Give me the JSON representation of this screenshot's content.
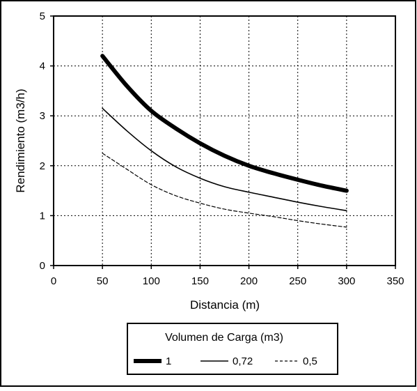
{
  "chart_data": {
    "type": "line",
    "title": "",
    "xlabel": "Distancia (m)",
    "ylabel": "Rendimiento (m3/h)",
    "xlim": [
      0,
      350
    ],
    "ylim": [
      0,
      5
    ],
    "xticks": [
      0,
      50,
      100,
      150,
      200,
      250,
      300,
      350
    ],
    "yticks": [
      0,
      1,
      2,
      3,
      4,
      5
    ],
    "grid": true,
    "legend": {
      "title": "Volumen de Carga (m3)",
      "placement": "bottom"
    },
    "series": [
      {
        "name": "1",
        "style": "thick",
        "color": "#000000",
        "x": [
          50,
          75,
          100,
          125,
          150,
          175,
          200,
          225,
          250,
          275,
          300
        ],
        "y": [
          4.2,
          3.6,
          3.1,
          2.75,
          2.45,
          2.2,
          2.0,
          1.85,
          1.72,
          1.6,
          1.5
        ]
      },
      {
        "name": "0,72",
        "style": "solid",
        "color": "#000000",
        "x": [
          50,
          75,
          100,
          125,
          150,
          175,
          200,
          225,
          250,
          275,
          300
        ],
        "y": [
          3.15,
          2.7,
          2.3,
          1.98,
          1.75,
          1.58,
          1.47,
          1.37,
          1.27,
          1.18,
          1.1
        ]
      },
      {
        "name": "0,5",
        "style": "dashed",
        "color": "#000000",
        "x": [
          50,
          75,
          100,
          125,
          150,
          175,
          200,
          225,
          250,
          275,
          300
        ],
        "y": [
          2.25,
          1.93,
          1.62,
          1.4,
          1.25,
          1.13,
          1.05,
          0.98,
          0.9,
          0.83,
          0.77
        ]
      }
    ]
  }
}
